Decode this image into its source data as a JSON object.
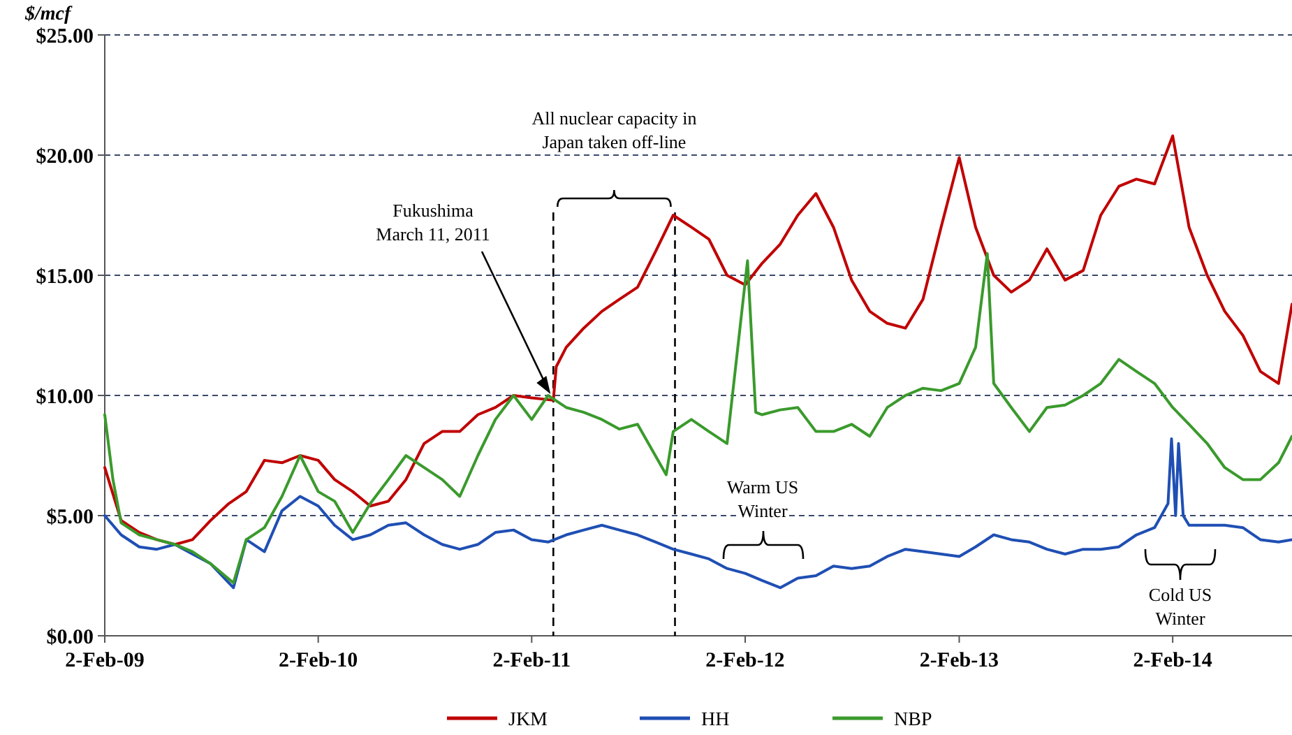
{
  "chart_data": {
    "type": "line",
    "ylabel": "$/mcf",
    "xlim": [
      "2009-02-02",
      "2014-08-25"
    ],
    "xticks": [
      {
        "value": "2009-02-02",
        "label": "2-Feb-09"
      },
      {
        "value": "2010-02-02",
        "label": "2-Feb-10"
      },
      {
        "value": "2011-02-02",
        "label": "2-Feb-11"
      },
      {
        "value": "2012-02-02",
        "label": "2-Feb-12"
      },
      {
        "value": "2013-02-02",
        "label": "2-Feb-13"
      },
      {
        "value": "2014-02-02",
        "label": "2-Feb-14"
      }
    ],
    "ylim": [
      0,
      25
    ],
    "yticks": [
      {
        "value": 0,
        "label": "$0.00"
      },
      {
        "value": 5,
        "label": "$5.00"
      },
      {
        "value": 10,
        "label": "$10.00"
      },
      {
        "value": 15,
        "label": "$15.00"
      },
      {
        "value": 20,
        "label": "$20.00"
      },
      {
        "value": 25,
        "label": "$25.00"
      }
    ],
    "grid": "y",
    "legend": "bottom",
    "marker": "none",
    "line_style": "solid",
    "series": [
      {
        "name": "JKM",
        "color": "#c00000",
        "x": [
          "2009-02-02",
          "2009-03-02",
          "2009-04-02",
          "2009-05-02",
          "2009-06-02",
          "2009-07-02",
          "2009-08-02",
          "2009-09-02",
          "2009-10-02",
          "2009-11-02",
          "2009-12-02",
          "2010-01-02",
          "2010-02-02",
          "2010-03-02",
          "2010-04-02",
          "2010-05-02",
          "2010-06-02",
          "2010-07-02",
          "2010-08-02",
          "2010-09-02",
          "2010-10-02",
          "2010-11-02",
          "2010-12-02",
          "2011-01-02",
          "2011-02-02",
          "2011-03-11",
          "2011-03-16",
          "2011-04-02",
          "2011-05-02",
          "2011-06-02",
          "2011-07-02",
          "2011-08-02",
          "2011-09-02",
          "2011-10-02",
          "2011-11-02",
          "2011-12-02",
          "2012-01-02",
          "2012-02-02",
          "2012-03-02",
          "2012-04-02",
          "2012-05-02",
          "2012-06-02",
          "2012-07-02",
          "2012-08-02",
          "2012-09-02",
          "2012-10-02",
          "2012-11-02",
          "2012-12-02",
          "2013-01-02",
          "2013-02-02",
          "2013-03-02",
          "2013-04-02",
          "2013-05-02",
          "2013-06-02",
          "2013-07-02",
          "2013-08-02",
          "2013-09-02",
          "2013-10-02",
          "2013-11-02",
          "2013-12-02",
          "2014-01-02",
          "2014-02-02",
          "2014-03-02",
          "2014-04-02",
          "2014-05-02",
          "2014-06-02",
          "2014-07-02",
          "2014-08-02",
          "2014-08-25"
        ],
        "values": [
          7.0,
          4.8,
          4.3,
          4.0,
          3.8,
          4.0,
          4.8,
          5.5,
          6.0,
          7.3,
          7.2,
          7.5,
          7.3,
          6.5,
          6.0,
          5.4,
          5.6,
          6.5,
          8.0,
          8.5,
          8.5,
          9.2,
          9.5,
          10.0,
          9.9,
          9.8,
          11.2,
          12.0,
          12.8,
          13.5,
          14.0,
          14.5,
          16.0,
          17.5,
          17.0,
          16.5,
          15.0,
          14.6,
          15.5,
          16.3,
          17.5,
          18.4,
          17.0,
          14.8,
          13.5,
          13.0,
          12.8,
          14.0,
          17.0,
          19.9,
          17.0,
          15.0,
          14.3,
          14.8,
          16.1,
          14.8,
          15.2,
          17.5,
          18.7,
          19.0,
          18.8,
          20.8,
          17.0,
          15.0,
          13.5,
          12.5,
          11.0,
          10.5,
          13.8
        ]
      },
      {
        "name": "HH",
        "color": "#1f4fb4",
        "x": [
          "2009-02-02",
          "2009-03-02",
          "2009-04-02",
          "2009-05-02",
          "2009-06-02",
          "2009-07-02",
          "2009-08-02",
          "2009-09-10",
          "2009-10-02",
          "2009-11-02",
          "2009-12-02",
          "2010-01-02",
          "2010-02-02",
          "2010-03-02",
          "2010-04-02",
          "2010-05-02",
          "2010-06-02",
          "2010-07-02",
          "2010-08-02",
          "2010-09-02",
          "2010-10-02",
          "2010-11-02",
          "2010-12-02",
          "2011-01-02",
          "2011-02-02",
          "2011-03-02",
          "2011-04-02",
          "2011-05-02",
          "2011-06-02",
          "2011-07-02",
          "2011-08-02",
          "2011-09-02",
          "2011-10-02",
          "2011-11-02",
          "2011-12-02",
          "2012-01-02",
          "2012-02-02",
          "2012-03-02",
          "2012-04-02",
          "2012-05-02",
          "2012-06-02",
          "2012-07-02",
          "2012-08-02",
          "2012-09-02",
          "2012-10-02",
          "2012-11-02",
          "2012-12-02",
          "2013-01-02",
          "2013-02-02",
          "2013-03-02",
          "2013-04-02",
          "2013-05-02",
          "2013-06-02",
          "2013-07-02",
          "2013-08-02",
          "2013-09-02",
          "2013-10-02",
          "2013-11-02",
          "2013-12-02",
          "2014-01-02",
          "2014-01-25",
          "2014-01-31",
          "2014-02-07",
          "2014-02-12",
          "2014-02-20",
          "2014-03-02",
          "2014-04-02",
          "2014-05-02",
          "2014-06-02",
          "2014-07-02",
          "2014-08-02",
          "2014-08-25"
        ],
        "values": [
          5.0,
          4.2,
          3.7,
          3.6,
          3.8,
          3.4,
          3.0,
          2.0,
          4.0,
          3.5,
          5.2,
          5.8,
          5.4,
          4.6,
          4.0,
          4.2,
          4.6,
          4.7,
          4.2,
          3.8,
          3.6,
          3.8,
          4.3,
          4.4,
          4.0,
          3.9,
          4.2,
          4.4,
          4.6,
          4.4,
          4.2,
          3.9,
          3.6,
          3.4,
          3.2,
          2.8,
          2.6,
          2.3,
          2.0,
          2.4,
          2.5,
          2.9,
          2.8,
          2.9,
          3.3,
          3.6,
          3.5,
          3.4,
          3.3,
          3.7,
          4.2,
          4.0,
          3.9,
          3.6,
          3.4,
          3.6,
          3.6,
          3.7,
          4.2,
          4.5,
          5.5,
          8.2,
          5.0,
          8.0,
          5.0,
          4.6,
          4.6,
          4.6,
          4.5,
          4.0,
          3.9,
          4.0
        ]
      },
      {
        "name": "NBP",
        "color": "#3a9a2c",
        "x": [
          "2009-02-02",
          "2009-02-16",
          "2009-03-02",
          "2009-04-02",
          "2009-05-02",
          "2009-06-02",
          "2009-07-02",
          "2009-08-02",
          "2009-09-10",
          "2009-10-02",
          "2009-11-02",
          "2009-12-02",
          "2010-01-02",
          "2010-02-02",
          "2010-03-02",
          "2010-04-02",
          "2010-05-02",
          "2010-06-02",
          "2010-07-02",
          "2010-08-02",
          "2010-09-02",
          "2010-10-02",
          "2010-11-02",
          "2010-12-02",
          "2011-01-02",
          "2011-02-02",
          "2011-03-02",
          "2011-04-02",
          "2011-05-02",
          "2011-06-02",
          "2011-07-02",
          "2011-08-02",
          "2011-09-20",
          "2011-10-02",
          "2011-11-02",
          "2011-12-02",
          "2012-01-02",
          "2012-02-06",
          "2012-02-20",
          "2012-03-02",
          "2012-04-02",
          "2012-05-02",
          "2012-06-02",
          "2012-07-02",
          "2012-08-02",
          "2012-09-02",
          "2012-10-02",
          "2012-11-02",
          "2012-12-02",
          "2013-01-02",
          "2013-02-02",
          "2013-03-02",
          "2013-03-22",
          "2013-04-02",
          "2013-05-02",
          "2013-06-02",
          "2013-07-02",
          "2013-08-02",
          "2013-09-02",
          "2013-10-02",
          "2013-11-02",
          "2013-12-02",
          "2014-01-02",
          "2014-02-02",
          "2014-03-02",
          "2014-04-02",
          "2014-05-02",
          "2014-06-02",
          "2014-07-02",
          "2014-08-02",
          "2014-08-25"
        ],
        "values": [
          9.2,
          6.5,
          4.7,
          4.2,
          4.0,
          3.8,
          3.5,
          3.0,
          2.2,
          4.0,
          4.5,
          5.8,
          7.5,
          6.0,
          5.6,
          4.3,
          5.5,
          6.5,
          7.5,
          7.0,
          6.5,
          5.8,
          7.5,
          9.0,
          10.0,
          9.0,
          10.0,
          9.5,
          9.3,
          9.0,
          8.6,
          8.8,
          6.7,
          8.5,
          9.0,
          8.5,
          8.0,
          15.6,
          9.3,
          9.2,
          9.4,
          9.5,
          8.5,
          8.5,
          8.8,
          8.3,
          9.5,
          10.0,
          10.3,
          10.2,
          10.5,
          12.0,
          15.9,
          10.5,
          9.5,
          8.5,
          9.5,
          9.6,
          10.0,
          10.5,
          11.5,
          11.0,
          10.5,
          9.5,
          8.8,
          8.0,
          7.0,
          6.5,
          6.5,
          7.2,
          8.3
        ]
      }
    ],
    "ref_lines": [
      {
        "axis": "x",
        "value": "2011-03-11",
        "color": "#000000",
        "line_style": "dashed"
      },
      {
        "axis": "x",
        "value": "2011-10-05",
        "color": "#000000",
        "line_style": "dashed"
      }
    ],
    "annotations": [
      "Fukushima\nMarch 11, 2011",
      "All nuclear capacity in\nJapan taken off-line",
      "Warm US\nWinter",
      "Cold US\nWinter"
    ]
  }
}
